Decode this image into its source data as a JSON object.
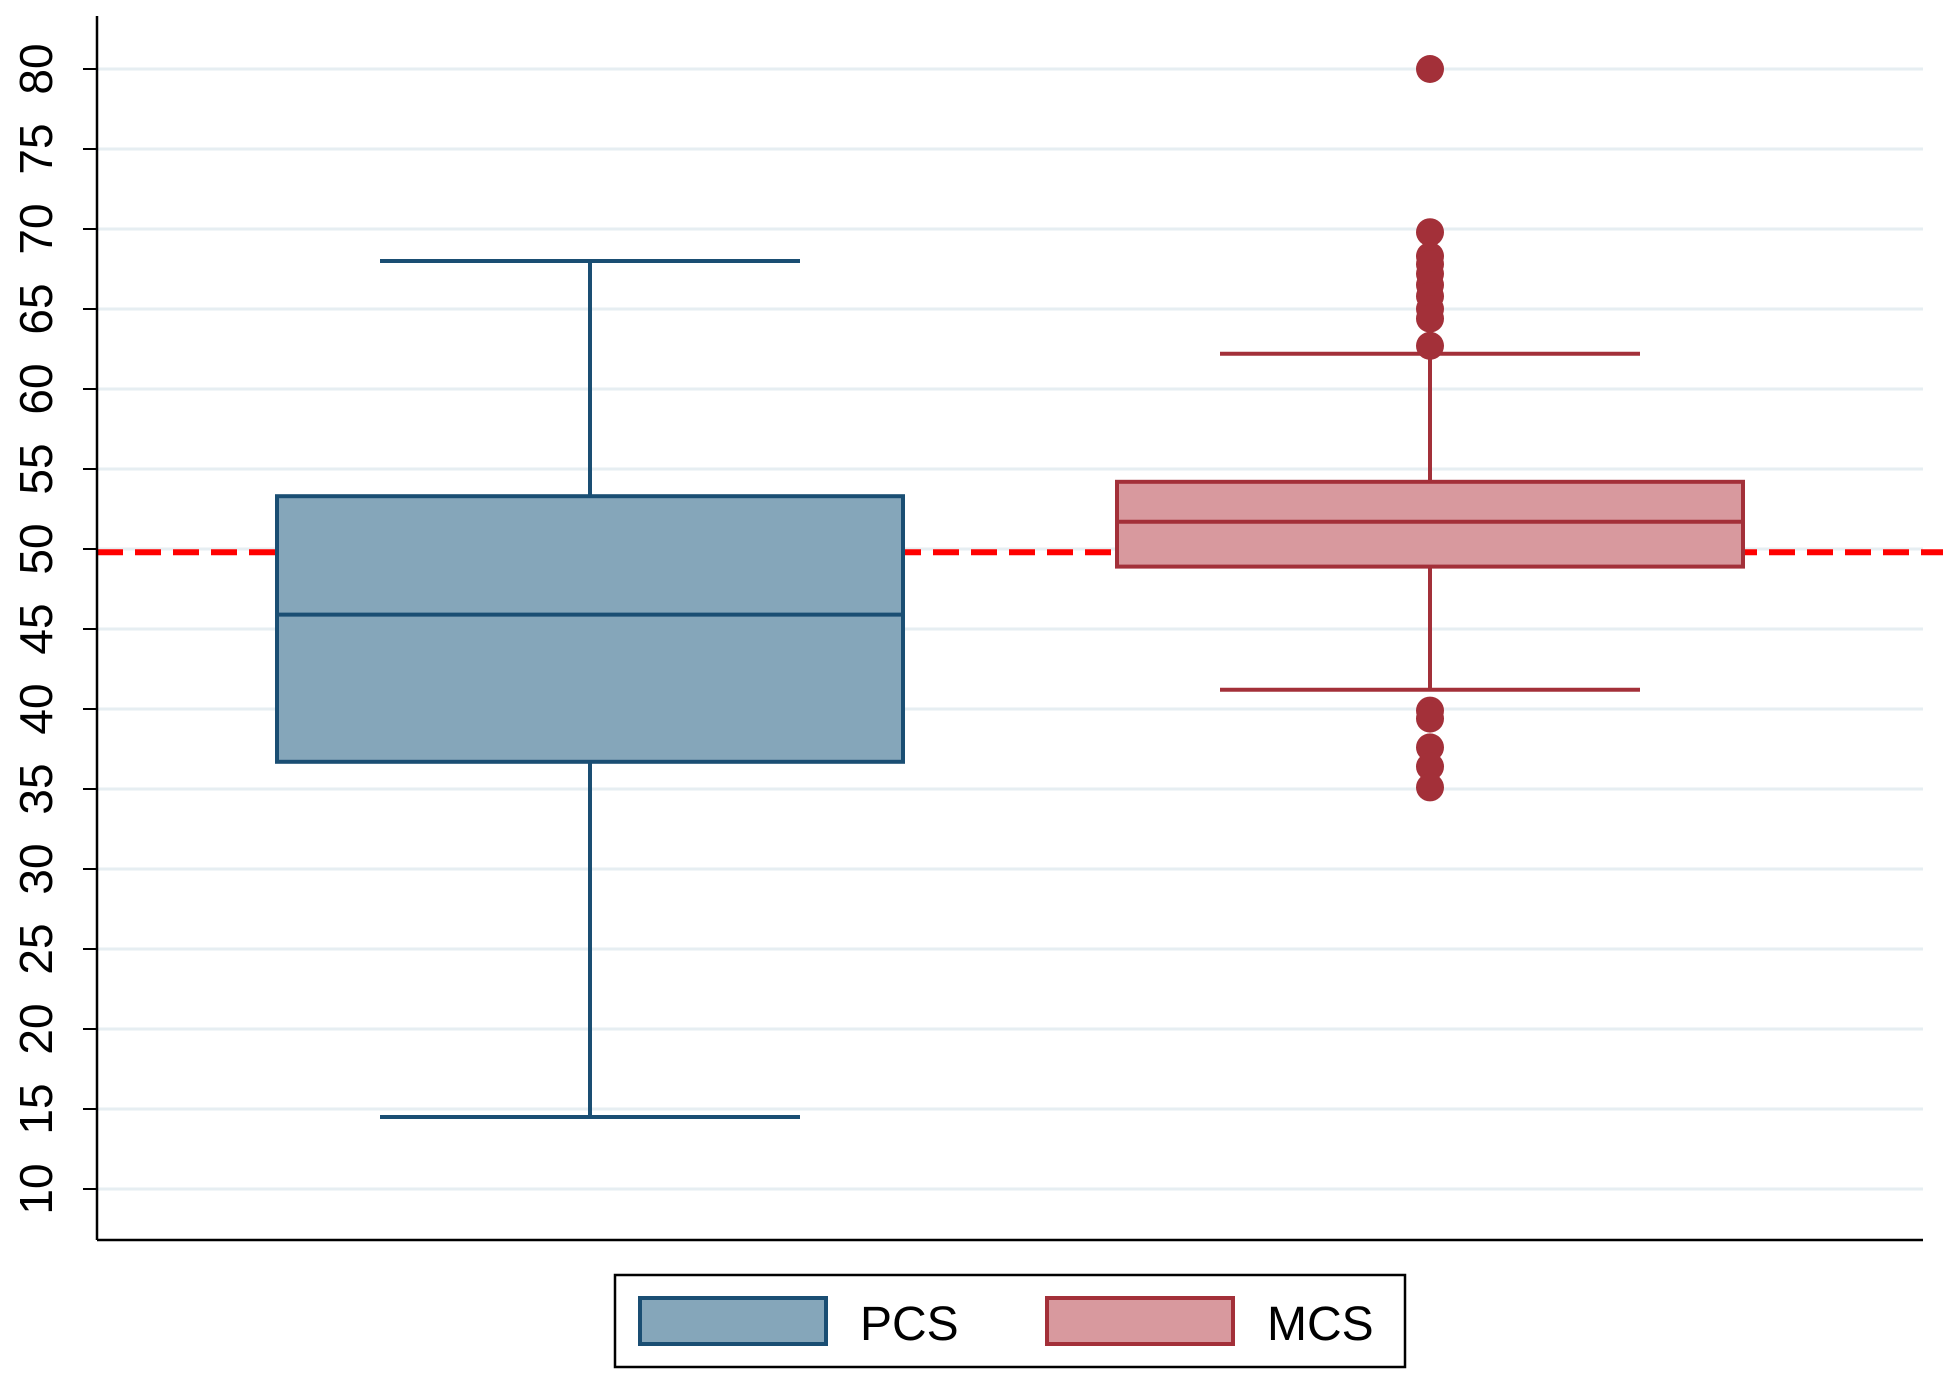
{
  "chart_data": {
    "type": "box",
    "title": "",
    "xlabel": "",
    "ylabel": "",
    "ylim": [
      7,
      83.5
    ],
    "yticks": [
      10,
      15,
      20,
      25,
      30,
      35,
      40,
      45,
      50,
      55,
      60,
      65,
      70,
      75,
      80
    ],
    "grid": true,
    "legend_position": "bottom",
    "reference_line": {
      "value": 49.8,
      "color": "#ff0000",
      "style": "dashed"
    },
    "series": [
      {
        "name": "PCS",
        "whisker_low": 14.5,
        "q1": 36.7,
        "median": 45.9,
        "q3": 53.3,
        "whisker_high": 68.0,
        "outliers": [],
        "fill_color": "#85a6ba",
        "line_color": "#1a4e73"
      },
      {
        "name": "MCS",
        "whisker_low": 41.2,
        "q1": 48.9,
        "median": 51.7,
        "q3": 54.2,
        "whisker_high": 62.2,
        "outliers": [
          80.0,
          69.8,
          68.3,
          67.8,
          67.2,
          66.5,
          65.8,
          65.0,
          64.4,
          62.7,
          39.9,
          39.4,
          37.6,
          36.4,
          35.1
        ],
        "fill_color": "#d8999e",
        "line_color": "#a33039",
        "outlier_color": "#a33039"
      }
    ]
  }
}
